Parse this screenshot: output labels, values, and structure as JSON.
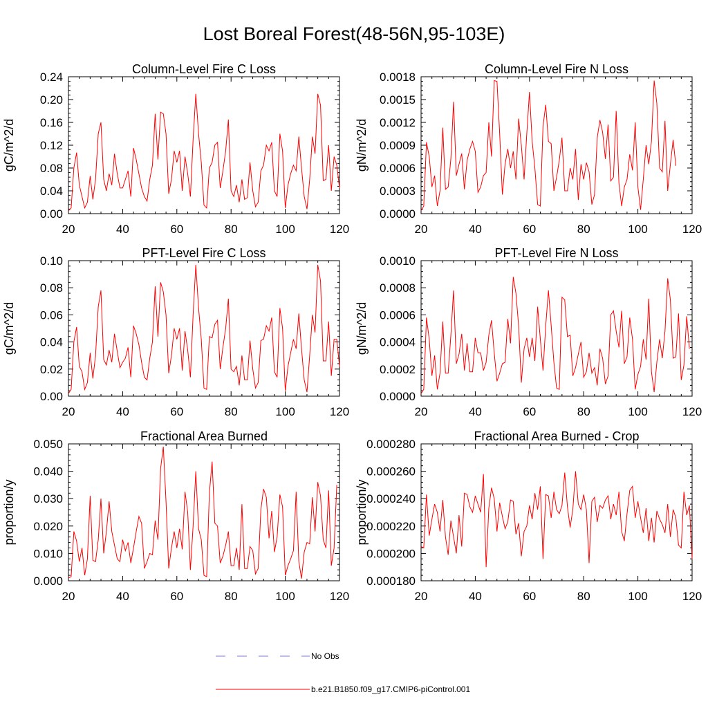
{
  "title": "Lost Boreal Forest(48-56N,95-103E)",
  "colors": {
    "series": "#ff0000",
    "obs": "#7b7bd6",
    "axis": "#000000"
  },
  "legend": {
    "obs_label": "No Obs",
    "model_label": "b.e21.B1850.f09_g17.CMIP6-piControl.001"
  },
  "chart_data": [
    {
      "type": "line",
      "title": "Column-Level Fire C Loss",
      "ylabel": "gC/m^2/d",
      "xlim": [
        20,
        120
      ],
      "ylim": [
        0,
        0.24
      ],
      "xticks": [
        20,
        40,
        60,
        80,
        100,
        120
      ],
      "xtick_labels": [
        "20",
        "40",
        "60",
        "80",
        "100",
        "120"
      ],
      "yticks": [
        0,
        0.04,
        0.08,
        0.12,
        0.16,
        0.2,
        0.24
      ],
      "ytick_labels": [
        "0.00",
        "0.04",
        "0.08",
        "0.12",
        "0.16",
        "0.20",
        "0.24"
      ],
      "x_start": 20,
      "series": [
        {
          "name": "b.e21.B1850.f09_g17.CMIP6-piControl.001",
          "values": [
            0.005,
            0.01,
            0.08,
            0.107,
            0.05,
            0.03,
            0.01,
            0.02,
            0.066,
            0.025,
            0.06,
            0.14,
            0.16,
            0.06,
            0.04,
            0.07,
            0.05,
            0.105,
            0.07,
            0.045,
            0.045,
            0.06,
            0.075,
            0.03,
            0.115,
            0.095,
            0.07,
            0.045,
            0.03,
            0.022,
            0.06,
            0.085,
            0.175,
            0.095,
            0.178,
            0.175,
            0.14,
            0.035,
            0.06,
            0.11,
            0.09,
            0.11,
            0.04,
            0.1,
            0.07,
            0.03,
            0.13,
            0.21,
            0.14,
            0.09,
            0.015,
            0.01,
            0.08,
            0.09,
            0.12,
            0.125,
            0.045,
            0.075,
            0.11,
            0.165,
            0.04,
            0.03,
            0.05,
            0.02,
            0.06,
            0.025,
            0.028,
            0.09,
            0.04,
            0.012,
            0.02,
            0.075,
            0.085,
            0.12,
            0.11,
            0.125,
            0.04,
            0.03,
            0.14,
            0.11,
            0.01,
            0.05,
            0.07,
            0.085,
            0.075,
            0.135,
            0.08,
            0.03,
            0.008,
            0.06,
            0.135,
            0.105,
            0.21,
            0.19,
            0.058,
            0.06,
            0.12,
            0.04,
            0.1,
            0.085,
            0.045
          ]
        }
      ]
    },
    {
      "type": "line",
      "title": "Column-Level Fire N Loss",
      "ylabel": "gN/m^2/d",
      "xlim": [
        20,
        120
      ],
      "ylim": [
        0,
        0.0018
      ],
      "xticks": [
        20,
        40,
        60,
        80,
        100,
        120
      ],
      "xtick_labels": [
        "20",
        "40",
        "60",
        "80",
        "100",
        "120"
      ],
      "yticks": [
        0,
        0.0003,
        0.0006,
        0.0009,
        0.0012,
        0.0015,
        0.0018
      ],
      "ytick_labels": [
        "0.0000",
        "0.0003",
        "0.0006",
        "0.0009",
        "0.0012",
        "0.0015",
        "0.0018"
      ],
      "x_start": 20,
      "series": [
        {
          "name": "b.e21.B1850.f09_g17.CMIP6-piControl.001",
          "values": [
            4e-05,
            0.0001,
            0.00094,
            0.00075,
            0.00035,
            0.0005,
            0.0001,
            0.0003,
            0.00113,
            0.00032,
            0.00035,
            0.00072,
            0.00147,
            0.0005,
            0.00065,
            0.00079,
            0.00032,
            0.0007,
            0.00085,
            0.00095,
            0.00082,
            0.00028,
            0.00035,
            0.0005,
            0.00054,
            0.0012,
            0.00075,
            0.00175,
            0.00174,
            0.00105,
            0.00025,
            0.00065,
            0.00085,
            0.0006,
            0.00082,
            0.00045,
            0.00125,
            0.0009,
            0.00045,
            0.00105,
            0.0016,
            0.00095,
            0.0006,
            0.00012,
            0.0001,
            0.00115,
            0.00143,
            0.00095,
            0.00092,
            0.0003,
            0.00048,
            0.0007,
            0.001,
            0.0003,
            0.0003,
            0.0006,
            0.00045,
            0.00085,
            0.00018,
            0.00065,
            0.00045,
            0.00067,
            0.00055,
            0.00012,
            0.00025,
            0.001,
            0.00123,
            0.00107,
            0.00072,
            0.00117,
            0.00043,
            0.00048,
            0.00135,
            0.0004,
            0.0001,
            0.00035,
            0.00045,
            0.00078,
            0.00057,
            0.0012,
            0.00035,
            5e-05,
            0.00045,
            0.0009,
            0.00065,
            0.00095,
            0.00175,
            0.00145,
            0.0006,
            0.00055,
            0.00122,
            0.0003,
            0.00065,
            0.00097,
            0.00063
          ]
        }
      ]
    },
    {
      "type": "line",
      "title": "PFT-Level Fire C Loss",
      "ylabel": "gC/m^2/d",
      "xlim": [
        20,
        120
      ],
      "ylim": [
        0,
        0.1
      ],
      "xticks": [
        20,
        40,
        60,
        80,
        100,
        120
      ],
      "xtick_labels": [
        "20",
        "40",
        "60",
        "80",
        "100",
        "120"
      ],
      "yticks": [
        0,
        0.02,
        0.04,
        0.06,
        0.08,
        0.1
      ],
      "ytick_labels": [
        "0.00",
        "0.02",
        "0.04",
        "0.06",
        "0.08",
        "0.10"
      ],
      "x_start": 20,
      "series": [
        {
          "name": "b.e21.B1850.f09_g17.CMIP6-piControl.001",
          "values": [
            0.002,
            0.005,
            0.04,
            0.051,
            0.022,
            0.018,
            0.005,
            0.01,
            0.032,
            0.013,
            0.03,
            0.066,
            0.078,
            0.027,
            0.023,
            0.034,
            0.025,
            0.046,
            0.033,
            0.021,
            0.025,
            0.028,
            0.036,
            0.014,
            0.052,
            0.046,
            0.038,
            0.025,
            0.014,
            0.012,
            0.028,
            0.04,
            0.081,
            0.044,
            0.084,
            0.077,
            0.06,
            0.017,
            0.03,
            0.05,
            0.042,
            0.05,
            0.019,
            0.048,
            0.034,
            0.014,
            0.06,
            0.097,
            0.065,
            0.042,
            0.006,
            0.005,
            0.044,
            0.043,
            0.053,
            0.056,
            0.02,
            0.036,
            0.05,
            0.072,
            0.02,
            0.018,
            0.022,
            0.008,
            0.03,
            0.012,
            0.012,
            0.041,
            0.02,
            0.006,
            0.01,
            0.041,
            0.042,
            0.052,
            0.048,
            0.058,
            0.018,
            0.014,
            0.065,
            0.05,
            0.004,
            0.022,
            0.032,
            0.042,
            0.035,
            0.061,
            0.035,
            0.012,
            0.003,
            0.03,
            0.06,
            0.047,
            0.097,
            0.085,
            0.026,
            0.026,
            0.055,
            0.015,
            0.042,
            0.042,
            0.022
          ]
        }
      ]
    },
    {
      "type": "line",
      "title": "PFT-Level Fire N Loss",
      "ylabel": "gN/m^2/d",
      "xlim": [
        20,
        120
      ],
      "ylim": [
        0,
        0.001
      ],
      "xticks": [
        20,
        40,
        60,
        80,
        100,
        120
      ],
      "xtick_labels": [
        "20",
        "40",
        "60",
        "80",
        "100",
        "120"
      ],
      "yticks": [
        0,
        0.0002,
        0.0004,
        0.0006,
        0.0008,
        0.001
      ],
      "ytick_labels": [
        "0.0000",
        "0.0002",
        "0.0004",
        "0.0006",
        "0.0008",
        "0.0010"
      ],
      "x_start": 20,
      "series": [
        {
          "name": "b.e21.B1850.f09_g17.CMIP6-piControl.001",
          "values": [
            2e-05,
            5e-05,
            0.00058,
            0.00042,
            0.00015,
            0.0003,
            5e-05,
            0.00017,
            0.00055,
            0.00017,
            0.00017,
            0.00045,
            0.00078,
            0.00024,
            0.00031,
            0.00046,
            0.00019,
            0.00039,
            0.00018,
            0.00018,
            0.00043,
            0.00032,
            0.00032,
            0.00019,
            0.00025,
            0.00045,
            0.00056,
            0.00032,
            0.00011,
            0.00017,
            0.00024,
            0.00025,
            0.00057,
            0.00039,
            0.00088,
            0.00076,
            0.00052,
            0.0001,
            0.00035,
            0.00043,
            0.00029,
            0.00043,
            0.00026,
            0.00066,
            0.00042,
            0.00019,
            0.00052,
            0.00078,
            0.00052,
            0.00025,
            6e-05,
            5e-05,
            0.00073,
            0.00071,
            0.00044,
            0.00045,
            0.00015,
            0.00021,
            0.00031,
            0.0004,
            0.00014,
            0.00018,
            0.00032,
            0.00017,
            0.00021,
            8e-05,
            0.00035,
            0.00028,
            9e-05,
            0.00015,
            0.0006,
            0.00063,
            0.00048,
            0.00036,
            0.00063,
            0.00024,
            0.00029,
            0.00058,
            0.00042,
            5e-05,
            0.00016,
            0.00022,
            0.00042,
            0.00027,
            0.00072,
            0.00018,
            3e-05,
            0.00025,
            0.00042,
            0.00028,
            0.00048,
            0.00087,
            0.00071,
            0.00028,
            0.00029,
            0.00061,
            0.00012,
            0.00023,
            0.00059,
            0.00035
          ]
        }
      ]
    },
    {
      "type": "line",
      "title": "Fractional Area Burned",
      "ylabel": "proportion/y",
      "xlim": [
        20,
        120
      ],
      "ylim": [
        0,
        0.05
      ],
      "xticks": [
        20,
        40,
        60,
        80,
        100,
        120
      ],
      "xtick_labels": [
        "20",
        "40",
        "60",
        "80",
        "100",
        "120"
      ],
      "yticks": [
        0,
        0.01,
        0.02,
        0.03,
        0.04,
        0.05
      ],
      "ytick_labels": [
        "0.000",
        "0.010",
        "0.020",
        "0.030",
        "0.040",
        "0.050"
      ],
      "x_start": 20,
      "series": [
        {
          "name": "b.e21.B1850.f09_g17.CMIP6-piControl.001",
          "values": [
            0.001,
            0.0015,
            0.018,
            0.0145,
            0.007,
            0.012,
            0.002,
            0.008,
            0.031,
            0.0075,
            0.007,
            0.015,
            0.03,
            0.01,
            0.018,
            0.029,
            0.018,
            0.013,
            0.008,
            0.007,
            0.015,
            0.011,
            0.014,
            0.0065,
            0.012,
            0.018,
            0.0235,
            0.021,
            0.0045,
            0.007,
            0.01,
            0.0095,
            0.022,
            0.015,
            0.041,
            0.049,
            0.029,
            0.0045,
            0.012,
            0.018,
            0.012,
            0.019,
            0.0115,
            0.0325,
            0.025,
            0.004,
            0.02,
            0.04,
            0.019,
            0.015,
            0.002,
            0.0015,
            0.032,
            0.0435,
            0.021,
            0.02,
            0.0065,
            0.009,
            0.013,
            0.018,
            0.0055,
            0.0055,
            0.012,
            0.004,
            0.028,
            0.0045,
            0.0045,
            0.0125,
            0.011,
            0.0025,
            0.0045,
            0.026,
            0.0335,
            0.0305,
            0.0155,
            0.0255,
            0.0105,
            0.016,
            0.0315,
            0.027,
            0.002,
            0.0055,
            0.008,
            0.011,
            0.0325,
            0.007,
            0.0008,
            0.0105,
            0.014,
            0.0135,
            0.0305,
            0.018,
            0.036,
            0.031,
            0.015,
            0.012,
            0.033,
            0.0055,
            0.012,
            0.035
          ]
        }
      ]
    },
    {
      "type": "line",
      "title": "Fractional Area Burned - Crop",
      "ylabel": "proportion/y",
      "xlim": [
        20,
        120
      ],
      "ylim": [
        0.00018,
        0.00028
      ],
      "xticks": [
        20,
        40,
        60,
        80,
        100,
        120
      ],
      "xtick_labels": [
        "20",
        "40",
        "60",
        "80",
        "100",
        "120"
      ],
      "yticks": [
        0.00018,
        0.0002,
        0.00022,
        0.00024,
        0.00026,
        0.00028
      ],
      "ytick_labels": [
        "0.000180",
        "0.000200",
        "0.000220",
        "0.000240",
        "0.000260",
        "0.000280"
      ],
      "x_start": 20,
      "series": [
        {
          "name": "b.e21.B1850.f09_g17.CMIP6-piControl.001",
          "values": [
            0.000205,
            0.000204,
            0.000243,
            0.000213,
            0.000225,
            0.000236,
            0.00023,
            0.000216,
            0.000239,
            0.000212,
            0.000199,
            0.000224,
            0.000212,
            0.0002,
            0.000228,
            0.000205,
            0.000244,
            0.000243,
            0.000234,
            0.00023,
            0.000242,
            0.000236,
            0.00023,
            0.000258,
            0.00019,
            0.000233,
            0.000248,
            0.00024,
            0.000216,
            0.000237,
            0.000227,
            0.000218,
            0.000223,
            0.000239,
            0.000238,
            0.000214,
            0.000222,
            0.000198,
            0.000216,
            0.00022,
            0.000235,
            0.000225,
            0.000244,
            0.000232,
            0.000249,
            0.000196,
            0.000243,
            0.000242,
            0.000226,
            0.000245,
            0.000232,
            0.000229,
            0.000235,
            0.000259,
            0.000234,
            0.000219,
            0.000232,
            0.00026,
            0.000236,
            0.000232,
            0.000243,
            0.000232,
            0.000193,
            0.000238,
            0.000241,
            0.000223,
            0.000235,
            0.000233,
            0.000239,
            0.000242,
            0.000225,
            0.000236,
            0.000228,
            0.000245,
            0.000216,
            0.000209,
            0.000229,
            0.000246,
            0.000249,
            0.000226,
            0.000238,
            0.000226,
            0.000215,
            0.000233,
            0.000209,
            0.000226,
            0.000208,
            0.000231,
            0.000225,
            0.000221,
            0.000215,
            0.000236,
            0.000212,
            0.000232,
            0.000226,
            0.000206,
            0.000204,
            0.000245,
            0.000228,
            0.000235,
            0.000196
          ]
        }
      ]
    }
  ]
}
